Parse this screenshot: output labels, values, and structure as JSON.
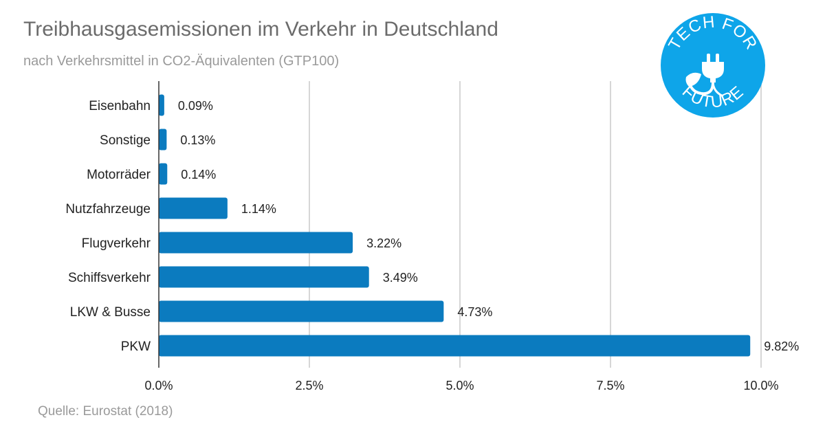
{
  "header": {
    "title": "Treibhausgasemissionen im Verkehr in Deutschland",
    "subtitle": "nach Verkehrsmittel in CO2-Äquivalenten (GTP100)"
  },
  "footer": {
    "source": "Quelle: Eurostat (2018)"
  },
  "logo": {
    "top_text": "TECH FOR",
    "bottom_text": "FUTURE",
    "icon": "plug-leaf-icon",
    "color": "#0ea5e9"
  },
  "chart_data": {
    "type": "bar",
    "orientation": "horizontal",
    "categories": [
      "Eisenbahn",
      "Sonstige",
      "Motorräder",
      "Nutzfahrzeuge",
      "Flugverkehr",
      "Schiffsverkehr",
      "LKW & Busse",
      "PKW"
    ],
    "values": [
      0.09,
      0.13,
      0.14,
      1.14,
      3.22,
      3.49,
      4.73,
      9.82
    ],
    "value_labels": [
      "0.09%",
      "0.13%",
      "0.14%",
      "1.14%",
      "3.22%",
      "3.49%",
      "4.73%",
      "9.82%"
    ],
    "xlim": [
      0,
      10
    ],
    "xticks": [
      0,
      2.5,
      5,
      7.5,
      10
    ],
    "xtick_labels": [
      "0.0%",
      "2.5%",
      "5.0%",
      "7.5%",
      "10.0%"
    ],
    "grid": "vertical",
    "bar_color": "#0b7bbf",
    "title": "Treibhausgasemissionen im Verkehr in Deutschland",
    "subtitle": "nach Verkehrsmittel in CO2-Äquivalenten (GTP100)"
  }
}
